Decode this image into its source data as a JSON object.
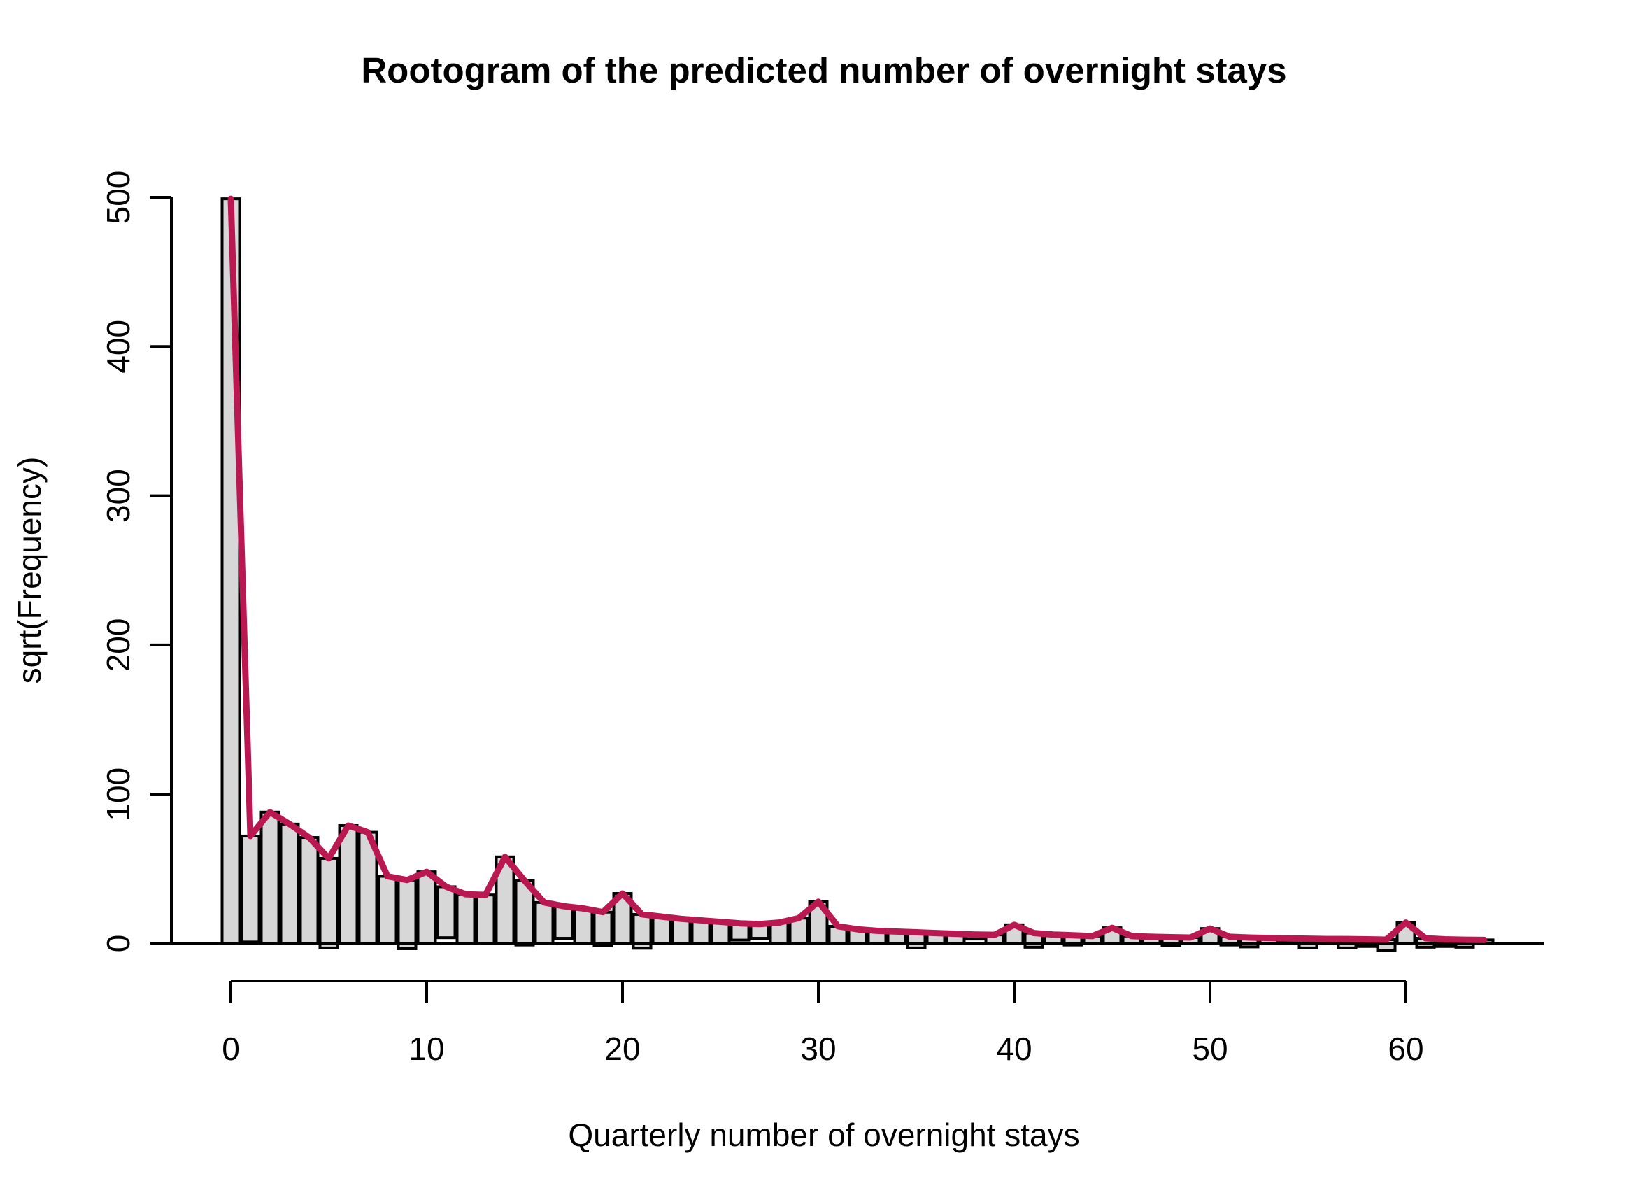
{
  "title": "Rootogram of the predicted number of overnight stays",
  "xlabel": "Quarterly number of overnight stays",
  "ylabel": "sqrt(Frequency)",
  "colors": {
    "fitted_line": "#B91950",
    "bar_fill": "#D7D7D7",
    "bar_border": "#000000",
    "axis": "#000000",
    "background": "#FFFFFF"
  },
  "chart_data": {
    "type": "bar",
    "subtype": "hanging-rootogram (bars hang from fitted curve; bar top = fitted, bar bottom = fitted - observed)",
    "title": "Rootogram of the predicted number of overnight stays",
    "xlabel": "Quarterly number of overnight stays",
    "ylabel": "sqrt(Frequency)",
    "x": [
      0,
      1,
      2,
      3,
      4,
      5,
      6,
      7,
      8,
      9,
      10,
      11,
      12,
      13,
      14,
      15,
      16,
      17,
      18,
      19,
      20,
      21,
      22,
      23,
      24,
      25,
      26,
      27,
      28,
      29,
      30,
      31,
      32,
      33,
      34,
      35,
      36,
      37,
      38,
      39,
      40,
      41,
      42,
      43,
      44,
      45,
      46,
      47,
      48,
      49,
      50,
      51,
      52,
      53,
      54,
      55,
      56,
      57,
      58,
      59,
      60,
      61,
      62,
      63,
      64
    ],
    "series": [
      {
        "name": "fitted_sqrt_frequency_line_and_bar_tops",
        "values": [
          499,
          72,
          88,
          80,
          71,
          57,
          79,
          74.5,
          45,
          42.5,
          48,
          38,
          33,
          32.5,
          58,
          42,
          27.5,
          25,
          23.5,
          21,
          33.5,
          19.5,
          18,
          16.5,
          15.5,
          14.5,
          13.5,
          13,
          14,
          17,
          28,
          11.5,
          9.5,
          8.5,
          8,
          7.5,
          7,
          6.5,
          6,
          5.8,
          12.5,
          7,
          6,
          5.5,
          5,
          10.5,
          5,
          4.5,
          4.2,
          4,
          10,
          4.5,
          4,
          3.7,
          3.4,
          3.2,
          3,
          3,
          2.8,
          2.6,
          14,
          3.5,
          2.8,
          2.5,
          2.4
        ]
      },
      {
        "name": "bar_bottom_deviation_from_zero",
        "values": [
          0,
          1,
          0,
          0,
          0,
          -3,
          0,
          0,
          0,
          -3.5,
          0,
          3.9,
          0,
          0,
          0,
          -1,
          0,
          3.5,
          0,
          -1.5,
          0,
          -3.2,
          0,
          0,
          0,
          0,
          2.3,
          3.5,
          0,
          0,
          0,
          0,
          0,
          0,
          0,
          -3,
          0,
          0,
          3,
          0,
          0,
          -2.5,
          0,
          -1,
          0,
          0,
          0,
          0,
          -1.2,
          0,
          0,
          -1,
          -2.3,
          0,
          1.5,
          -3,
          0,
          -3,
          -2,
          -4.5,
          0,
          -2.5,
          -2,
          -2.5,
          0
        ]
      }
    ],
    "x_ticks": [
      0,
      10,
      20,
      30,
      40,
      50,
      60
    ],
    "y_ticks": [
      0,
      100,
      200,
      300,
      400,
      500
    ],
    "xlim": [
      -1.5,
      67
    ],
    "ylim": [
      0,
      500
    ],
    "grid": false,
    "legend": "none"
  }
}
